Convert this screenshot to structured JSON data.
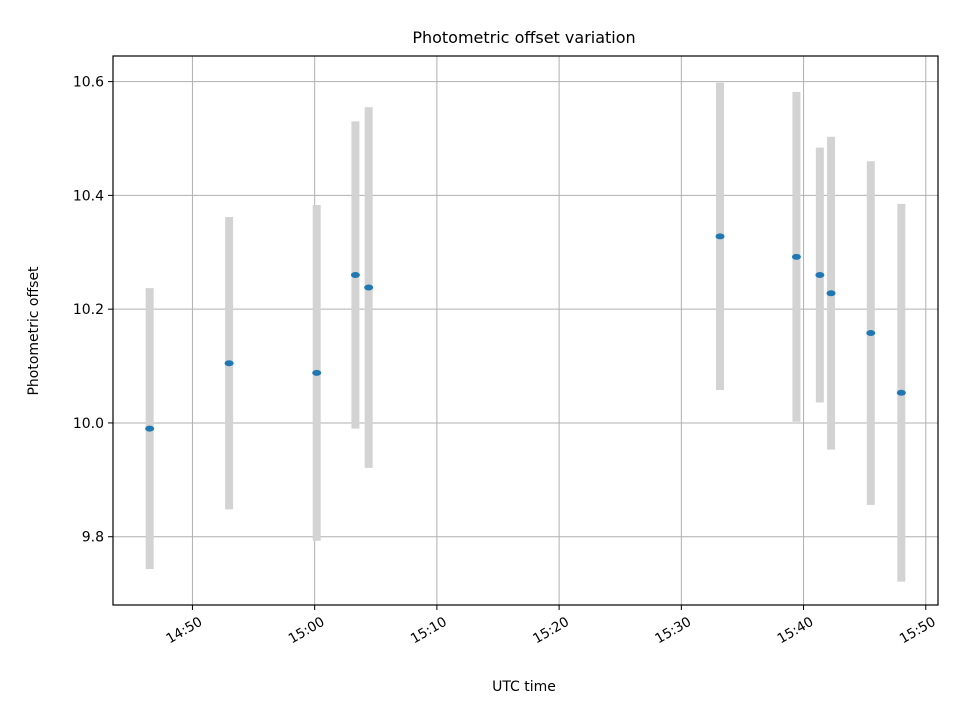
{
  "chart_data": {
    "type": "scatter",
    "title": "Photometric offset variation",
    "xlabel": "UTC time",
    "ylabel": "Photometric offset",
    "xlim": [
      "14:43:30",
      "15:51:00"
    ],
    "ylim": [
      9.68,
      10.645
    ],
    "x_ticks": [
      "14:50",
      "15:00",
      "15:10",
      "15:20",
      "15:30",
      "15:40",
      "15:50"
    ],
    "y_ticks": [
      "9.8",
      "10.0",
      "10.2",
      "10.4",
      "10.6"
    ],
    "y_tick_values": [
      9.8,
      10.0,
      10.2,
      10.4,
      10.6
    ],
    "grid": true,
    "colors": {
      "point": "#1f77b4",
      "errorbar": "#d3d3d3",
      "grid": "#b0b0b0",
      "axes": "#000000"
    },
    "series": [
      {
        "points": [
          {
            "x": "14:46:30",
            "y": 9.99,
            "err": 0.247
          },
          {
            "x": "14:53:00",
            "y": 10.105,
            "err": 0.257
          },
          {
            "x": "15:00:10",
            "y": 10.088,
            "err": 0.295
          },
          {
            "x": "15:03:20",
            "y": 10.26,
            "err": 0.27
          },
          {
            "x": "15:04:25",
            "y": 10.238,
            "err": 0.317
          },
          {
            "x": "15:33:10",
            "y": 10.328,
            "err": 0.27
          },
          {
            "x": "15:39:25",
            "y": 10.292,
            "err": 0.29
          },
          {
            "x": "15:41:20",
            "y": 10.26,
            "err": 0.224
          },
          {
            "x": "15:42:15",
            "y": 10.228,
            "err": 0.275
          },
          {
            "x": "15:45:30",
            "y": 10.158,
            "err": 0.302
          },
          {
            "x": "15:48:00",
            "y": 10.053,
            "err": 0.332
          }
        ]
      }
    ]
  }
}
